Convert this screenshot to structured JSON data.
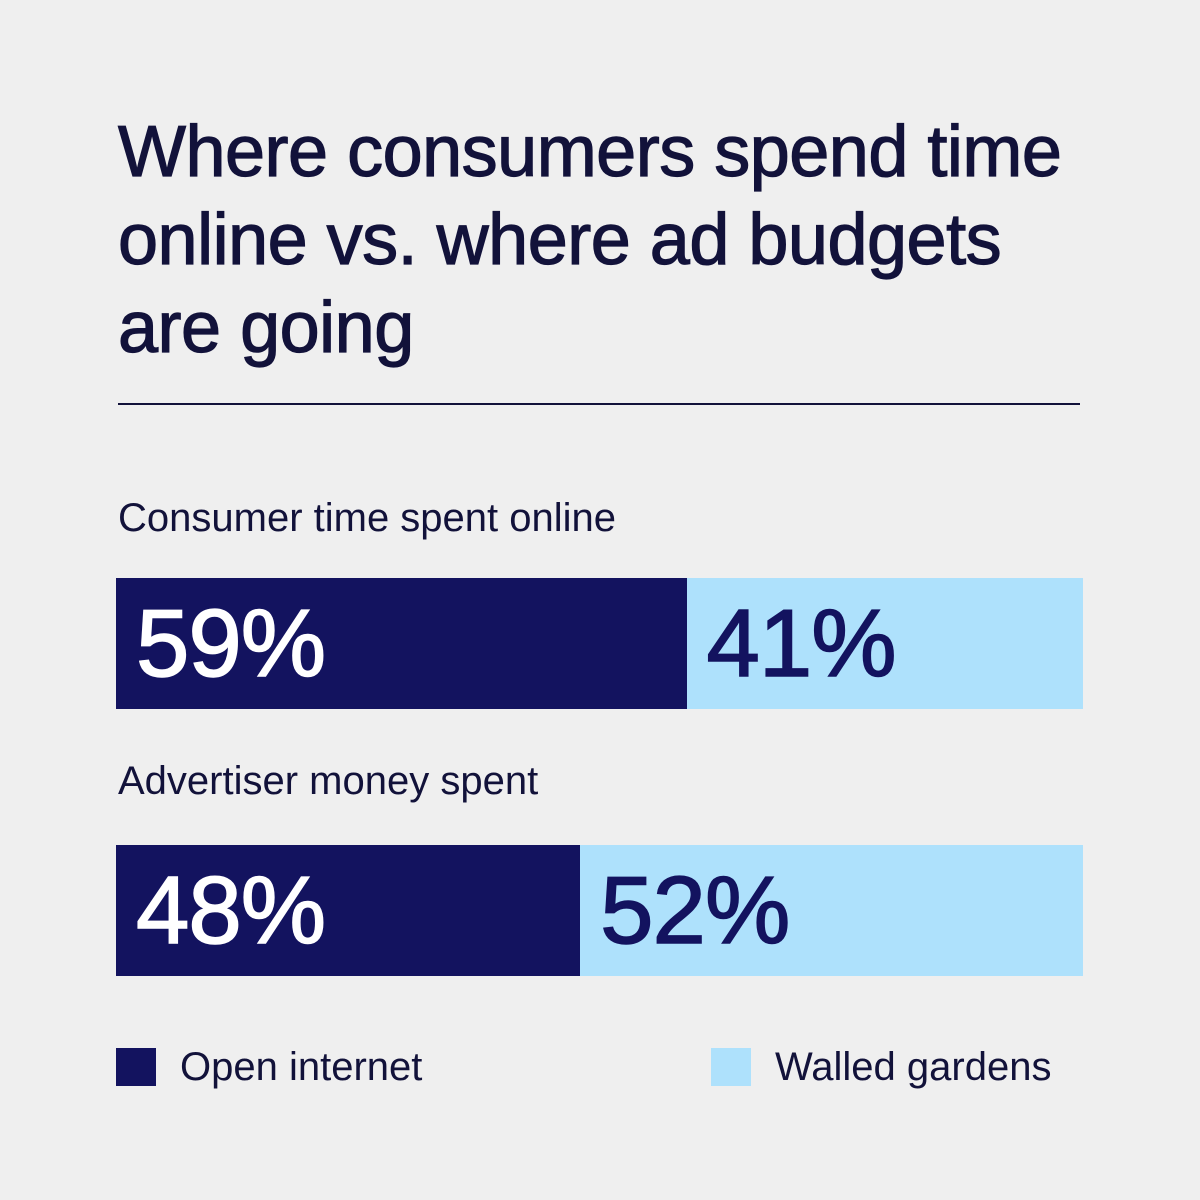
{
  "chart_data": {
    "type": "bar",
    "orientation": "horizontal",
    "stacked": true,
    "normalized": true,
    "title": "Where consumers spend time online vs. where ad budgets are going",
    "categories": [
      "Consumer time spent online",
      "Advertiser money spent"
    ],
    "series": [
      {
        "name": "Open internet",
        "values": [
          59,
          48
        ],
        "labels": [
          "59%",
          "48%"
        ],
        "color": "#13135f"
      },
      {
        "name": "Walled gardens",
        "values": [
          41,
          52
        ],
        "labels": [
          "41%",
          "52%"
        ],
        "color": "#aee1fc"
      }
    ],
    "xlim": [
      0,
      100
    ],
    "grid": false,
    "legend_position": "bottom"
  },
  "colors": {
    "background": "#efefef",
    "text": "#12123a"
  }
}
